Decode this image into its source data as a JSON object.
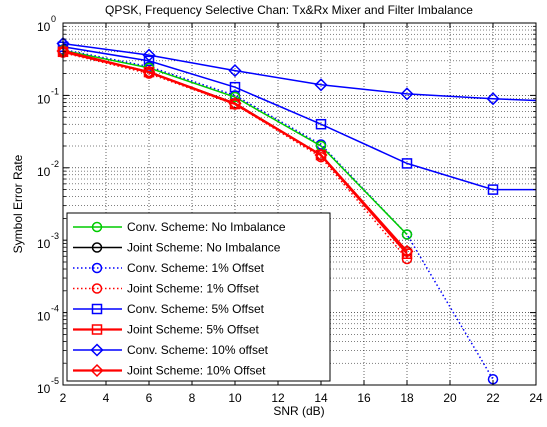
{
  "chart_data": {
    "type": "line",
    "title": "QPSK, Frequency Selective Chan: Tx&Rx Mixer and Filter Imbalance",
    "xlabel": "SNR (dB)",
    "ylabel": "Symbol Error Rate",
    "xlim": [
      2,
      24
    ],
    "ylim": [
      1e-05,
      1
    ],
    "yscale": "log",
    "grid": true,
    "x_ticks": [
      "2",
      "4",
      "6",
      "8",
      "10",
      "12",
      "14",
      "16",
      "18",
      "20",
      "22",
      "24"
    ],
    "y_ticks": [
      {
        "base": "10",
        "exp": "0",
        "value": 1
      },
      {
        "base": "10",
        "exp": "-1",
        "value": 0.1
      },
      {
        "base": "10",
        "exp": "-2",
        "value": 0.01
      },
      {
        "base": "10",
        "exp": "-3",
        "value": 0.001
      },
      {
        "base": "10",
        "exp": "-4",
        "value": 0.0001
      },
      {
        "base": "10",
        "exp": "-5",
        "value": 1e-05
      }
    ],
    "legend_position": "lower-left",
    "series": [
      {
        "name": "Conv. Scheme: No Imbalance",
        "color": "#00cc00",
        "marker": "circle",
        "dash": "solid",
        "x": [
          2,
          6,
          10,
          14,
          18
        ],
        "y": [
          0.42,
          0.24,
          0.095,
          0.02,
          0.0012
        ]
      },
      {
        "name": "Joint Scheme: No Imbalance",
        "color": "#000000",
        "marker": "circle",
        "dash": "solid",
        "x": [
          2,
          6,
          10,
          14,
          18
        ],
        "y": [
          0.4,
          0.21,
          0.078,
          0.015,
          0.0007
        ]
      },
      {
        "name": "Conv. Scheme: 1% Offset",
        "color": "#0000ff",
        "marker": "circle",
        "dash": "dotted",
        "x": [
          2,
          6,
          10,
          14,
          18,
          22
        ],
        "y": [
          0.43,
          0.25,
          0.1,
          0.021,
          0.0012,
          1.2e-05
        ]
      },
      {
        "name": "Joint Scheme: 1% Offset",
        "color": "#ff0000",
        "marker": "circle",
        "dash": "dotted",
        "x": [
          2,
          6,
          10,
          14,
          18
        ],
        "y": [
          0.39,
          0.2,
          0.075,
          0.014,
          0.00055
        ]
      },
      {
        "name": "Conv. Scheme: 5% Offset",
        "color": "#0000ff",
        "marker": "square",
        "dash": "solid",
        "x": [
          2,
          6,
          10,
          14,
          18,
          22,
          24
        ],
        "y": [
          0.47,
          0.3,
          0.13,
          0.04,
          0.0115,
          0.005,
          0.005
        ]
      },
      {
        "name": "Joint Scheme: 5% Offset",
        "color": "#ff0000",
        "marker": "square",
        "dash": "solid",
        "x": [
          2,
          6,
          10,
          14,
          18
        ],
        "y": [
          0.4,
          0.21,
          0.076,
          0.015,
          0.00065
        ]
      },
      {
        "name": "Conv. Scheme: 10% offset",
        "color": "#0000ff",
        "marker": "diamond",
        "dash": "solid",
        "x": [
          2,
          6,
          10,
          14,
          18,
          22,
          24
        ],
        "y": [
          0.52,
          0.36,
          0.22,
          0.14,
          0.105,
          0.09,
          0.085
        ]
      },
      {
        "name": "Joint Scheme: 10% Offset",
        "color": "#ff0000",
        "marker": "diamond",
        "dash": "solid",
        "x": [
          2,
          6,
          10,
          14,
          18
        ],
        "y": [
          0.41,
          0.21,
          0.077,
          0.015,
          0.0007
        ]
      }
    ]
  }
}
